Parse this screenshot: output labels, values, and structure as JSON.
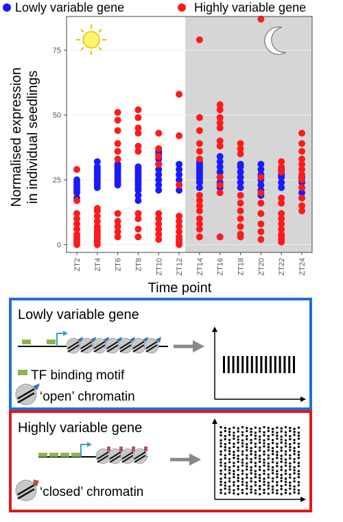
{
  "legend": {
    "low_label": "Lowly variable gene",
    "high_label": "Highly variable gene",
    "low_color": "#1a1aff",
    "high_color": "#ff1a1a"
  },
  "chart_data": {
    "type": "scatter",
    "title": "",
    "xlabel": "Time point",
    "ylabel_line1": "Normalised expression",
    "ylabel_line2": "in individual seedlings",
    "categories": [
      "ZT2",
      "ZT4",
      "ZT6",
      "ZT8",
      "ZT10",
      "ZT12",
      "ZT14",
      "ZT16",
      "ZT18",
      "ZT20",
      "ZT22",
      "ZT24"
    ],
    "yticks": [
      0,
      25,
      50,
      75
    ],
    "ylim": [
      -3,
      88
    ],
    "night_shading_from": "ZT13",
    "day_icon": "sun-icon",
    "night_icon": "moon-icon",
    "series": [
      {
        "name": "Lowly variable gene",
        "color": "#1a1aff",
        "points": [
          [
            [
              0,
              18
            ],
            [
              0,
              20
            ],
            [
              0,
              21
            ],
            [
              0,
              22
            ],
            [
              0,
              23
            ],
            [
              0,
              24
            ],
            [
              0,
              25
            ]
          ],
          [
            [
              1,
              22
            ],
            [
              1,
              23
            ],
            [
              1,
              24
            ],
            [
              1,
              25
            ],
            [
              1,
              26
            ],
            [
              1,
              27
            ],
            [
              1,
              28
            ],
            [
              1,
              29
            ],
            [
              1,
              30
            ],
            [
              1,
              32
            ]
          ],
          [
            [
              2,
              23
            ],
            [
              2,
              24
            ],
            [
              2,
              25
            ],
            [
              2,
              26
            ],
            [
              2,
              27
            ],
            [
              2,
              28
            ],
            [
              2,
              29
            ],
            [
              2,
              30
            ],
            [
              2,
              31
            ]
          ],
          [
            [
              3,
              17
            ],
            [
              3,
              19
            ],
            [
              3,
              21
            ],
            [
              3,
              22
            ],
            [
              3,
              23
            ],
            [
              3,
              24
            ],
            [
              3,
              25
            ],
            [
              3,
              26
            ],
            [
              3,
              27
            ],
            [
              3,
              28
            ],
            [
              3,
              29
            ],
            [
              3,
              30
            ]
          ],
          [
            [
              4,
              21
            ],
            [
              4,
              23
            ],
            [
              4,
              25
            ],
            [
              4,
              27
            ],
            [
              4,
              29
            ],
            [
              4,
              31
            ],
            [
              4,
              33
            ],
            [
              4,
              35
            ],
            [
              4,
              36
            ],
            [
              4,
              37
            ]
          ],
          [
            [
              5,
              21
            ],
            [
              5,
              23
            ],
            [
              5,
              25
            ],
            [
              5,
              27
            ],
            [
              5,
              29
            ],
            [
              5,
              31
            ]
          ],
          [
            [
              6,
              22
            ],
            [
              6,
              24
            ],
            [
              6,
              25
            ],
            [
              6,
              26
            ],
            [
              6,
              27
            ],
            [
              6,
              28
            ],
            [
              6,
              29
            ],
            [
              6,
              30
            ],
            [
              6,
              31
            ],
            [
              6,
              32
            ]
          ],
          [
            [
              7,
              22
            ],
            [
              7,
              24
            ],
            [
              7,
              26
            ],
            [
              7,
              28
            ],
            [
              7,
              30
            ],
            [
              7,
              32
            ],
            [
              7,
              34
            ]
          ],
          [
            [
              8,
              22
            ],
            [
              8,
              24
            ],
            [
              8,
              26
            ],
            [
              8,
              28
            ],
            [
              8,
              30
            ],
            [
              8,
              31
            ]
          ],
          [
            [
              9,
              19
            ],
            [
              9,
              21
            ],
            [
              9,
              23
            ],
            [
              9,
              25
            ],
            [
              9,
              27
            ],
            [
              9,
              29
            ],
            [
              9,
              31
            ]
          ],
          [
            [
              10,
              22
            ],
            [
              10,
              24
            ],
            [
              10,
              26
            ],
            [
              10,
              27
            ],
            [
              10,
              29
            ]
          ],
          [
            [
              11,
              18
            ],
            [
              11,
              20
            ],
            [
              11,
              22
            ],
            [
              11,
              24
            ],
            [
              11,
              26
            ]
          ]
        ]
      },
      {
        "name": "Highly variable gene",
        "color": "#ff1a1a",
        "points": [
          [
            [
              0,
              0
            ],
            [
              0,
              1
            ],
            [
              0,
              2
            ],
            [
              0,
              3
            ],
            [
              0,
              4
            ],
            [
              0,
              6
            ],
            [
              0,
              8
            ],
            [
              0,
              10
            ],
            [
              0,
              12
            ],
            [
              0,
              17
            ],
            [
              0,
              29
            ]
          ],
          [
            [
              1,
              0
            ],
            [
              1,
              1
            ],
            [
              1,
              2
            ],
            [
              1,
              3
            ],
            [
              1,
              4
            ],
            [
              1,
              5
            ],
            [
              1,
              6
            ],
            [
              1,
              7
            ],
            [
              1,
              9
            ],
            [
              1,
              11
            ],
            [
              1,
              13
            ],
            [
              1,
              14
            ]
          ],
          [
            [
              2,
              3
            ],
            [
              2,
              5
            ],
            [
              2,
              7
            ],
            [
              2,
              9
            ],
            [
              2,
              12
            ],
            [
              2,
              33
            ],
            [
              2,
              36
            ],
            [
              2,
              39
            ],
            [
              2,
              44
            ],
            [
              2,
              48
            ],
            [
              2,
              51
            ]
          ],
          [
            [
              3,
              3
            ],
            [
              3,
              6
            ],
            [
              3,
              10
            ],
            [
              3,
              12
            ],
            [
              3,
              36
            ],
            [
              3,
              38
            ],
            [
              3,
              43
            ],
            [
              3,
              45
            ],
            [
              3,
              49
            ],
            [
              3,
              52
            ]
          ],
          [
            [
              4,
              2
            ],
            [
              4,
              4
            ],
            [
              4,
              6
            ],
            [
              4,
              8
            ],
            [
              4,
              10
            ],
            [
              4,
              12
            ],
            [
              4,
              31
            ],
            [
              4,
              34
            ],
            [
              4,
              37
            ],
            [
              4,
              43
            ]
          ],
          [
            [
              5,
              0
            ],
            [
              5,
              1
            ],
            [
              5,
              2
            ],
            [
              5,
              3
            ],
            [
              5,
              5
            ],
            [
              5,
              7
            ],
            [
              5,
              9
            ],
            [
              5,
              11
            ],
            [
              5,
              23
            ],
            [
              5,
              42
            ],
            [
              5,
              58
            ]
          ],
          [
            [
              6,
              3
            ],
            [
              6,
              6
            ],
            [
              6,
              8
            ],
            [
              6,
              10
            ],
            [
              6,
              13
            ],
            [
              6,
              15
            ],
            [
              6,
              17
            ],
            [
              6,
              19
            ],
            [
              6,
              33
            ],
            [
              6,
              36
            ],
            [
              6,
              39
            ],
            [
              6,
              44
            ],
            [
              6,
              49
            ],
            [
              6,
              79
            ]
          ],
          [
            [
              7,
              3
            ],
            [
              7,
              20
            ],
            [
              7,
              23
            ],
            [
              7,
              26
            ],
            [
              7,
              38
            ],
            [
              7,
              40
            ],
            [
              7,
              45
            ],
            [
              7,
              47
            ],
            [
              7,
              49
            ],
            [
              7,
              52
            ],
            [
              7,
              54
            ]
          ],
          [
            [
              8,
              3
            ],
            [
              8,
              4
            ],
            [
              8,
              7
            ],
            [
              8,
              10
            ],
            [
              8,
              13
            ],
            [
              8,
              16
            ],
            [
              8,
              19
            ],
            [
              8,
              35
            ],
            [
              8,
              37
            ],
            [
              8,
              39
            ]
          ],
          [
            [
              9,
              2
            ],
            [
              9,
              5
            ],
            [
              9,
              8
            ],
            [
              9,
              12
            ],
            [
              9,
              16
            ],
            [
              9,
              20
            ],
            [
              9,
              26
            ],
            [
              9,
              87
            ]
          ],
          [
            [
              10,
              1
            ],
            [
              10,
              2
            ],
            [
              10,
              3
            ],
            [
              10,
              4
            ],
            [
              10,
              6
            ],
            [
              10,
              8
            ],
            [
              10,
              10
            ],
            [
              10,
              12
            ],
            [
              10,
              16
            ],
            [
              10,
              18
            ],
            [
              10,
              28
            ],
            [
              10,
              30
            ],
            [
              10,
              32
            ]
          ],
          [
            [
              11,
              13
            ],
            [
              11,
              15
            ],
            [
              11,
              18
            ],
            [
              11,
              22
            ],
            [
              11,
              25
            ],
            [
              11,
              27
            ],
            [
              11,
              29
            ],
            [
              11,
              31
            ],
            [
              11,
              33
            ],
            [
              11,
              36
            ],
            [
              11,
              39
            ],
            [
              11,
              43
            ]
          ]
        ]
      }
    ]
  },
  "low_panel": {
    "title": "Lowly variable gene",
    "tf_label": "TF binding motif",
    "chromatin_label": "‘open’ chromatin",
    "border_color": "#1f6fd0",
    "plot_bars": 16
  },
  "high_panel": {
    "title": "Highly variable gene",
    "chromatin_label": "‘closed’ chromatin",
    "border_color": "#e01818",
    "plot_columns": 19,
    "plot_rows": 18
  }
}
